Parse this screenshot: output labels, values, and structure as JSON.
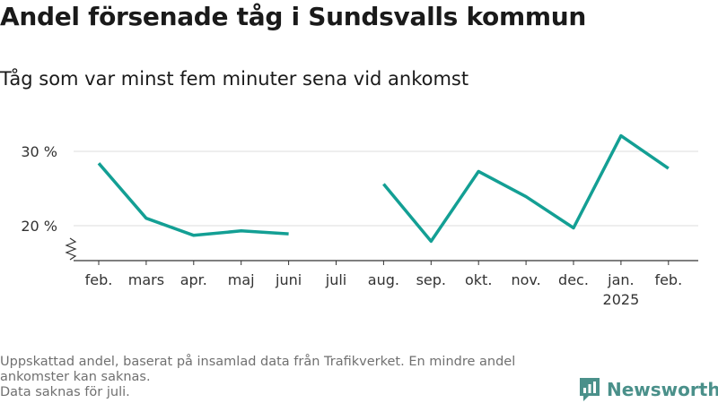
{
  "title": "Andel försenade tåg i Sundsvalls kommun",
  "subtitle": "Tåg som var minst fem minuter sena vid ankomst",
  "footnote": {
    "line1": "Uppskattad andel, baserat på insamlad data från Trafikverket. En mindre andel",
    "line2": "ankomster kan saknas.",
    "line3": "Data saknas för juli."
  },
  "brand": {
    "name": "Newsworthy",
    "icon": "newsworthy-logo-icon",
    "color": "#4a908a"
  },
  "chart_data": {
    "type": "line",
    "title": "",
    "xlabel": "",
    "ylabel": "",
    "categories": [
      "feb.",
      "mars",
      "apr.",
      "maj",
      "juni",
      "juli",
      "aug.",
      "sep.",
      "okt.",
      "nov.",
      "dec.",
      "jan.",
      "feb."
    ],
    "year_labels": [
      "",
      "",
      "",
      "",
      "",
      "",
      "",
      "",
      "",
      "",
      "",
      "2025",
      ""
    ],
    "values": [
      28.4,
      21.0,
      18.7,
      19.3,
      18.9,
      null,
      25.6,
      17.9,
      27.3,
      23.9,
      19.7,
      32.1,
      27.7
    ],
    "ylim": [
      15.3,
      33.5
    ],
    "yticks": [
      20,
      30
    ],
    "ytick_labels": [
      "20 %",
      "30 %"
    ],
    "axis_break": true,
    "grid": true,
    "legend": "none",
    "line_color": "#139f94"
  }
}
